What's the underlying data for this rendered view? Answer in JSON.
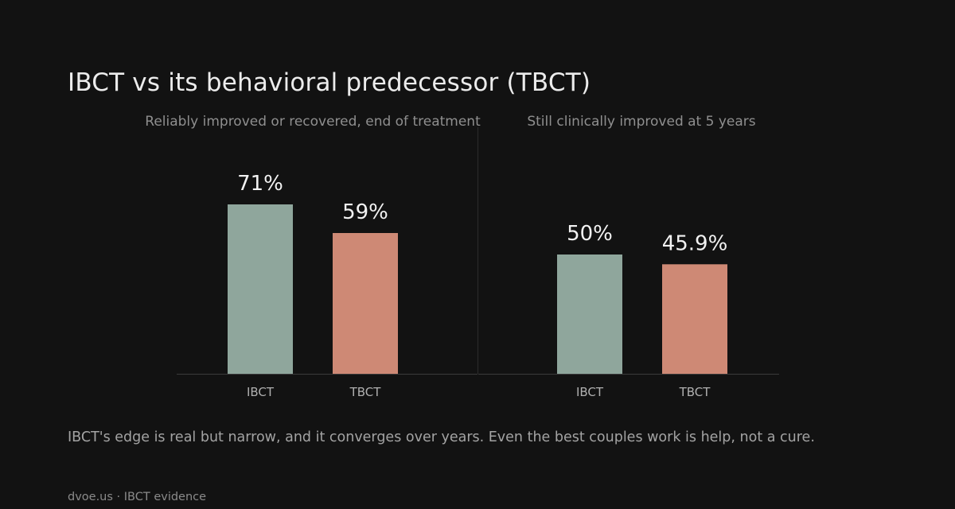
{
  "title": "IBCT vs its behavioral predecessor (TBCT)",
  "colors": {
    "background": "#121212",
    "IBCT": "#8fa69c",
    "TBCT": "#ce8975",
    "axis": "#3a3a3a",
    "divider": "#2c2c2c"
  },
  "chart_data": [
    {
      "type": "bar",
      "subtitle": "Reliably improved or recovered, end of treatment",
      "categories": [
        "IBCT",
        "TBCT"
      ],
      "values": [
        71,
        59
      ],
      "value_labels": [
        "71%",
        "59%"
      ],
      "ylim": [
        0,
        100
      ]
    },
    {
      "type": "bar",
      "subtitle": "Still clinically improved at 5 years",
      "categories": [
        "IBCT",
        "TBCT"
      ],
      "values": [
        50,
        45.9
      ],
      "value_labels": [
        "50%",
        "45.9%"
      ],
      "ylim": [
        0,
        100
      ]
    }
  ],
  "caption": "IBCT's edge is real but narrow, and it converges over years. Even the best couples work is help, not a cure.",
  "footer": "dvoe.us · IBCT evidence"
}
